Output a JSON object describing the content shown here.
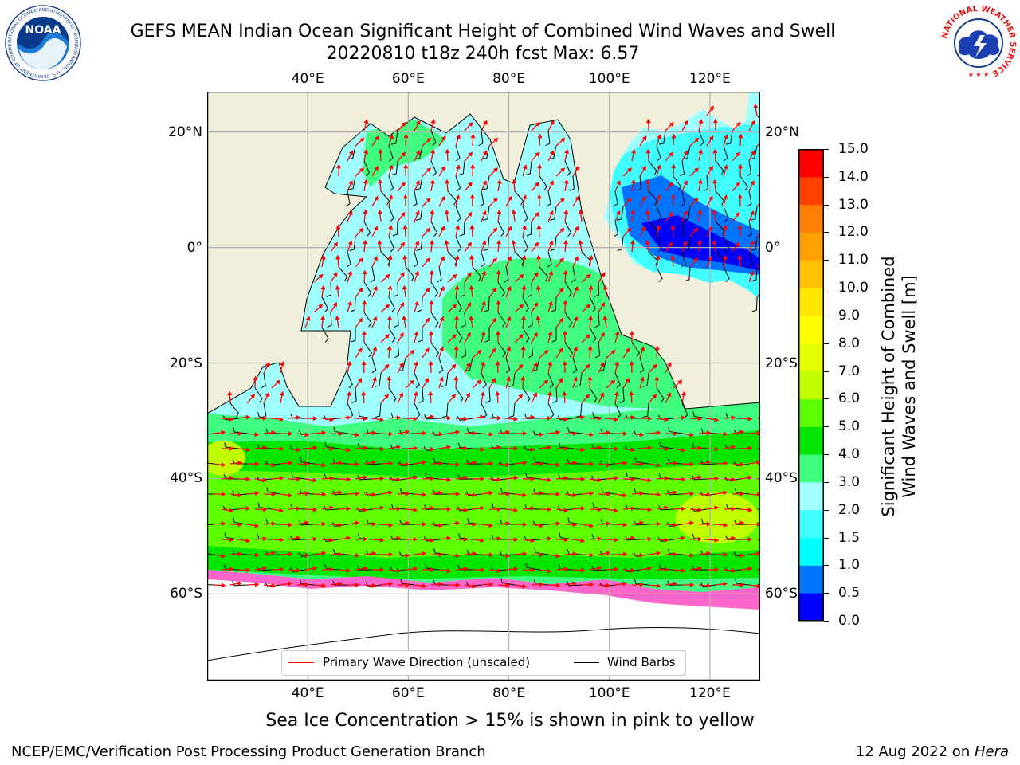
{
  "title": {
    "line1": "GEFS MEAN Indian Ocean Significant Height of Combined Wind Waves and Swell",
    "line2": "20220810 t18z 240h fcst   Max: 6.57"
  },
  "logos": {
    "noaa": {
      "text": "NOAA",
      "ring_text": "NATIONAL OCEANIC AND ATMOSPHERIC ADMINISTRATION · U.S. DEPARTMENT OF COMMERCE"
    },
    "nws": {
      "ring_text": "NATIONAL WEATHER SERVICE"
    }
  },
  "map": {
    "lon_range": [
      20,
      130
    ],
    "lat_range": [
      -75,
      27
    ],
    "lon_ticks": [
      {
        "value": 40,
        "label": "40°E"
      },
      {
        "value": 60,
        "label": "60°E"
      },
      {
        "value": 80,
        "label": "80°E"
      },
      {
        "value": 100,
        "label": "100°E"
      },
      {
        "value": 120,
        "label": "120°E"
      }
    ],
    "lat_ticks": [
      {
        "value": 20,
        "label": "20°N"
      },
      {
        "value": 0,
        "label": "0°"
      },
      {
        "value": -20,
        "label": "20°S"
      },
      {
        "value": -40,
        "label": "40°S"
      },
      {
        "value": -60,
        "label": "60°S"
      }
    ],
    "colors": {
      "land": "#efefdc",
      "ice_white": "#ffffff",
      "wave_arrow": "#ff0000",
      "wind_barb": "#000000"
    }
  },
  "colorbar": {
    "label": "Significant Height of Combined\nWind Waves and Swell [m]",
    "levels": [
      0.0,
      0.5,
      1.0,
      1.5,
      2.0,
      3.0,
      4.0,
      5.0,
      6.0,
      7.0,
      8.0,
      9.0,
      10.0,
      11.0,
      12.0,
      13.0,
      14.0,
      15.0
    ],
    "tick_labels": [
      "0.0",
      "0.5",
      "1.0",
      "1.5",
      "2.0",
      "3.0",
      "4.0",
      "5.0",
      "6.0",
      "7.0",
      "8.0",
      "9.0",
      "10.0",
      "11.0",
      "12.0",
      "13.0",
      "14.0",
      "15.0"
    ],
    "colors": [
      "#0000ff",
      "#0073ff",
      "#00ffff",
      "#40ffff",
      "#a0ffff",
      "#40ff80",
      "#00e600",
      "#60ff00",
      "#c0ff00",
      "#e6ff00",
      "#ffff00",
      "#ffe600",
      "#ffc000",
      "#ffa000",
      "#ff8000",
      "#ff4000",
      "#ff0000"
    ]
  },
  "legend": {
    "items": [
      {
        "label": "Primary Wave Direction (unscaled)",
        "color": "#ff0000"
      },
      {
        "label": "Wind Barbs",
        "color": "#000000"
      }
    ]
  },
  "footer": {
    "note": "Sea Ice Concentration > 15% is shown in pink to yellow",
    "credit": "NCEP/EMC/Verification Post Processing Product Generation Branch",
    "date": "12 Aug 2022 on ",
    "host": "Hera"
  }
}
